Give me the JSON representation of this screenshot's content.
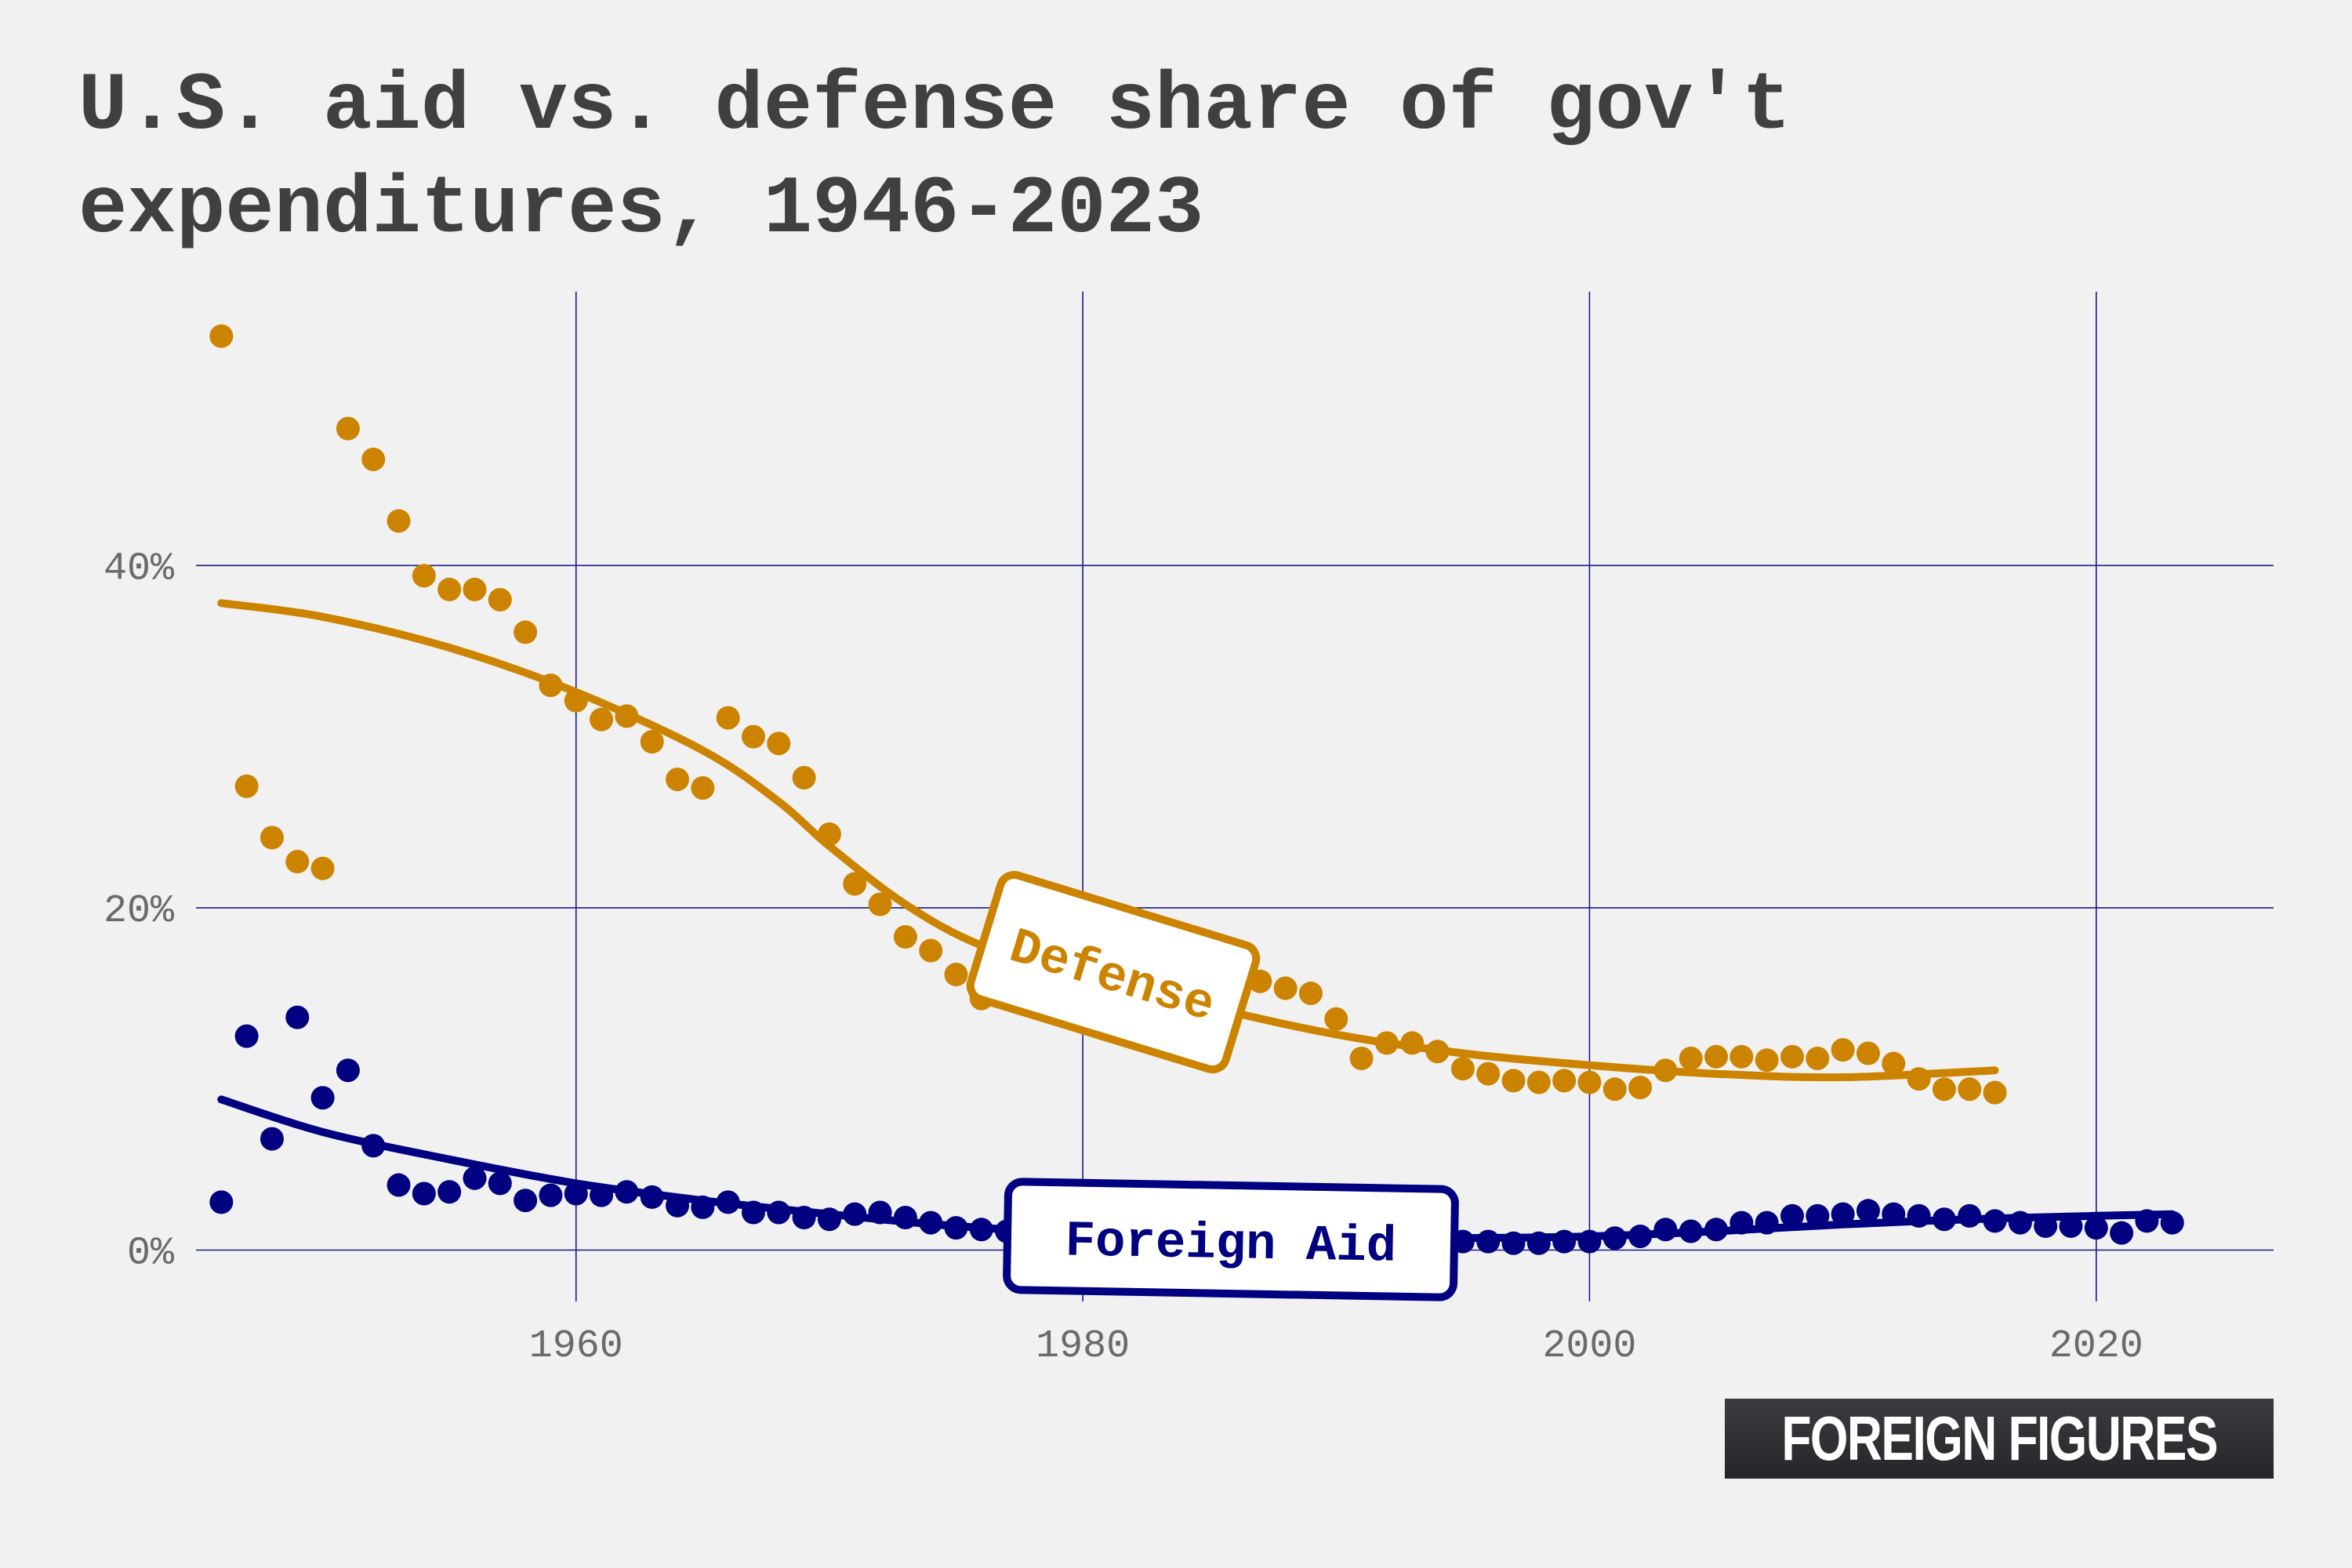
{
  "title_lines": [
    "U.S. aid vs. defense share of gov't",
    "expenditures, 1946-2023"
  ],
  "logo_text": "FOREIGN FIGURES",
  "colors": {
    "defense": "#cc8400",
    "aid": "#000080",
    "grid": "#1a1a8c",
    "background": "#f1f1f1"
  },
  "chart_data": {
    "type": "scatter",
    "title": "U.S. aid vs. defense share of gov't expenditures, 1946-2023",
    "xlabel": "",
    "ylabel": "",
    "xlim": [
      1945,
      2027
    ],
    "ylim": [
      -3,
      56
    ],
    "x_ticks": [
      1960,
      1980,
      2000,
      2020
    ],
    "x_tick_labels": [
      "1960",
      "1980",
      "2000",
      "2020"
    ],
    "y_ticks": [
      0,
      20,
      40
    ],
    "y_tick_labels": [
      "0%",
      "20%",
      "40%"
    ],
    "grid": true,
    "series": [
      {
        "name": "Defense",
        "color": "#cc8400",
        "label_position": "center",
        "points": [
          [
            1946,
            53.4
          ],
          [
            1947,
            27.1
          ],
          [
            1948,
            24.1
          ],
          [
            1949,
            22.7
          ],
          [
            1950,
            22.3
          ],
          [
            1951,
            48.0
          ],
          [
            1952,
            46.2
          ],
          [
            1953,
            42.6
          ],
          [
            1954,
            39.4
          ],
          [
            1955,
            38.6
          ],
          [
            1956,
            38.6
          ],
          [
            1957,
            38.0
          ],
          [
            1958,
            36.1
          ],
          [
            1959,
            33.0
          ],
          [
            1960,
            32.1
          ],
          [
            1961,
            31.0
          ],
          [
            1962,
            31.2
          ],
          [
            1963,
            29.7
          ],
          [
            1964,
            27.5
          ],
          [
            1965,
            27.0
          ],
          [
            1966,
            31.1
          ],
          [
            1967,
            30.0
          ],
          [
            1968,
            29.6
          ],
          [
            1969,
            27.6
          ],
          [
            1970,
            24.3
          ],
          [
            1971,
            21.4
          ],
          [
            1972,
            20.2
          ],
          [
            1973,
            18.3
          ],
          [
            1974,
            17.5
          ],
          [
            1975,
            16.1
          ],
          [
            1976,
            14.7
          ],
          [
            1977,
            15.0
          ],
          [
            1978,
            14.8
          ],
          [
            1979,
            15.2
          ],
          [
            1980,
            15.6
          ],
          [
            1981,
            16.0
          ],
          [
            1982,
            16.5
          ],
          [
            1983,
            16.8
          ],
          [
            1984,
            16.3
          ],
          [
            1985,
            15.9
          ],
          [
            1986,
            15.5
          ],
          [
            1987,
            15.7
          ],
          [
            1988,
            15.3
          ],
          [
            1989,
            15.0
          ],
          [
            1990,
            13.5
          ],
          [
            1991,
            11.2
          ],
          [
            1992,
            12.1
          ],
          [
            1993,
            12.1
          ],
          [
            1994,
            11.6
          ],
          [
            1995,
            10.6
          ],
          [
            1996,
            10.3
          ],
          [
            1997,
            9.9
          ],
          [
            1998,
            9.8
          ],
          [
            1999,
            9.9
          ],
          [
            2000,
            9.8
          ],
          [
            2001,
            9.4
          ],
          [
            2002,
            9.5
          ],
          [
            2003,
            10.5
          ],
          [
            2004,
            11.2
          ],
          [
            2005,
            11.3
          ],
          [
            2006,
            11.3
          ],
          [
            2007,
            11.1
          ],
          [
            2008,
            11.3
          ],
          [
            2009,
            11.2
          ],
          [
            2010,
            11.7
          ],
          [
            2011,
            11.5
          ],
          [
            2012,
            10.9
          ],
          [
            2013,
            10.0
          ],
          [
            2014,
            9.4
          ],
          [
            2015,
            9.4
          ],
          [
            2016,
            9.2
          ]
        ],
        "trend": [
          [
            1946,
            37.8
          ],
          [
            1950,
            37.0
          ],
          [
            1955,
            35.2
          ],
          [
            1960,
            32.6
          ],
          [
            1965,
            29.2
          ],
          [
            1968,
            26.2
          ],
          [
            1970,
            23.6
          ],
          [
            1973,
            20.2
          ],
          [
            1976,
            17.8
          ],
          [
            1980,
            16.0
          ],
          [
            1985,
            14.2
          ],
          [
            1990,
            12.6
          ],
          [
            1995,
            11.5
          ],
          [
            2000,
            10.8
          ],
          [
            2005,
            10.3
          ],
          [
            2010,
            10.1
          ],
          [
            2016,
            10.5
          ]
        ]
      },
      {
        "name": "Foreign Aid",
        "color": "#000080",
        "label_position": "center",
        "points": [
          [
            1946,
            2.8
          ],
          [
            1947,
            12.5
          ],
          [
            1948,
            6.5
          ],
          [
            1949,
            13.6
          ],
          [
            1950,
            8.9
          ],
          [
            1951,
            10.5
          ],
          [
            1952,
            6.1
          ],
          [
            1953,
            3.8
          ],
          [
            1954,
            3.3
          ],
          [
            1955,
            3.4
          ],
          [
            1956,
            4.2
          ],
          [
            1957,
            3.9
          ],
          [
            1958,
            2.9
          ],
          [
            1959,
            3.2
          ],
          [
            1960,
            3.3
          ],
          [
            1961,
            3.2
          ],
          [
            1962,
            3.4
          ],
          [
            1963,
            3.1
          ],
          [
            1964,
            2.6
          ],
          [
            1965,
            2.5
          ],
          [
            1966,
            2.8
          ],
          [
            1967,
            2.2
          ],
          [
            1968,
            2.2
          ],
          [
            1969,
            1.9
          ],
          [
            1970,
            1.8
          ],
          [
            1971,
            2.1
          ],
          [
            1972,
            2.2
          ],
          [
            1973,
            1.9
          ],
          [
            1974,
            1.6
          ],
          [
            1975,
            1.3
          ],
          [
            1976,
            1.2
          ],
          [
            1977,
            1.1
          ],
          [
            1978,
            1.0
          ],
          [
            1979,
            0.9
          ],
          [
            1980,
            0.9
          ],
          [
            1981,
            0.8
          ],
          [
            1982,
            0.8
          ],
          [
            1983,
            0.8
          ],
          [
            1984,
            0.7
          ],
          [
            1985,
            0.7
          ],
          [
            1986,
            0.7
          ],
          [
            1987,
            0.6
          ],
          [
            1988,
            0.6
          ],
          [
            1989,
            0.6
          ],
          [
            1990,
            0.6
          ],
          [
            1991,
            0.6
          ],
          [
            1992,
            0.6
          ],
          [
            1993,
            0.5
          ],
          [
            1994,
            0.5
          ],
          [
            1995,
            0.5
          ],
          [
            1996,
            0.5
          ],
          [
            1997,
            0.4
          ],
          [
            1998,
            0.4
          ],
          [
            1999,
            0.5
          ],
          [
            2000,
            0.5
          ],
          [
            2001,
            0.7
          ],
          [
            2002,
            0.8
          ],
          [
            2003,
            1.2
          ],
          [
            2004,
            1.1
          ],
          [
            2005,
            1.2
          ],
          [
            2006,
            1.6
          ],
          [
            2007,
            1.6
          ],
          [
            2008,
            2.0
          ],
          [
            2009,
            2.0
          ],
          [
            2010,
            2.1
          ],
          [
            2011,
            2.3
          ],
          [
            2012,
            2.1
          ],
          [
            2013,
            2.0
          ],
          [
            2014,
            1.8
          ],
          [
            2015,
            2.0
          ],
          [
            2016,
            1.7
          ],
          [
            2017,
            1.6
          ],
          [
            2018,
            1.4
          ],
          [
            2019,
            1.4
          ],
          [
            2020,
            1.3
          ],
          [
            2021,
            1.0
          ],
          [
            2022,
            1.7
          ],
          [
            2023,
            1.6
          ]
        ],
        "trend": [
          [
            1946,
            8.8
          ],
          [
            1950,
            6.9
          ],
          [
            1955,
            5.3
          ],
          [
            1960,
            3.9
          ],
          [
            1965,
            2.9
          ],
          [
            1970,
            2.1
          ],
          [
            1975,
            1.4
          ],
          [
            1980,
            1.0
          ],
          [
            1985,
            0.8
          ],
          [
            1990,
            0.7
          ],
          [
            1995,
            0.7
          ],
          [
            2000,
            0.8
          ],
          [
            2005,
            1.1
          ],
          [
            2010,
            1.5
          ],
          [
            2015,
            1.8
          ],
          [
            2020,
            2.0
          ],
          [
            2023,
            2.1
          ]
        ]
      }
    ]
  }
}
